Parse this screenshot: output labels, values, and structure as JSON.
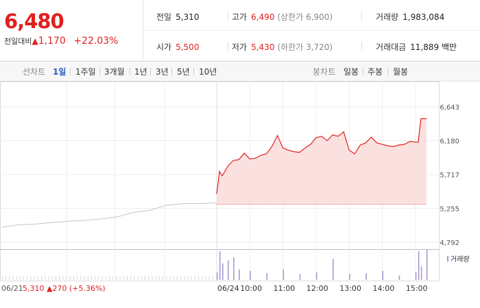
{
  "quote": {
    "price": "6,480",
    "change_label": "전일대비",
    "change_arrow": "▲",
    "change": "1,170",
    "change_pct": "+22.03%"
  },
  "info": {
    "prev_close_label": "전일",
    "prev_close": "5,310",
    "high_label": "고가",
    "high": "6,490",
    "upper_limit": "(상한가 6,900)",
    "volume_label": "거래량",
    "volume": "1,983,084",
    "open_label": "시가",
    "open": "5,500",
    "low_label": "저가",
    "low": "5,430",
    "lower_limit": "(하한가 3,720)",
    "amount_label": "거래대금",
    "amount": "11,889 백만"
  },
  "tabs": {
    "line_label": "선차트",
    "line": [
      "1일",
      "1주일",
      "3개월",
      "1년",
      "3년",
      "5년",
      "10년"
    ],
    "active": "1일",
    "candle_label": "봉차트",
    "candle": [
      "일봉",
      "주봉",
      "월봉"
    ]
  },
  "footer": {
    "prev_date": "06/21",
    "prev_close": "5,310",
    "arrow": "▲",
    "prev_change": "270",
    "prev_pct": "(+5.36%)"
  },
  "colors": {
    "up": "#e0201f",
    "prev_line": "#c4c4c4",
    "fill": "#fbe0e0",
    "volume": "#a592cf"
  },
  "chart_data": {
    "type": "line",
    "y_ticks": [
      "6,643",
      "6,180",
      "5,717",
      "5,255",
      "4,792"
    ],
    "ylim": [
      4792,
      6643
    ],
    "x_ticks": [
      "06/24",
      "10:00",
      "11:00",
      "12:00",
      "13:00",
      "14:00",
      "15:00"
    ],
    "reference_price": 5310,
    "legend": "거래량",
    "series": [
      {
        "name": "",
        "x": [
          "06/21 09:00",
          "06/21 09:30",
          "06/21 10:00",
          "06/21 10:30",
          "06/21 11:00",
          "06/21 11:30",
          "06/21 12:00",
          "06/21 12:30",
          "06/21 13:00",
          "06/21 13:30",
          "06/21 14:00",
          "06/21 14:30",
          "06/21 15:00",
          "06/21 15:20"
        ],
        "values": [
          5000,
          5030,
          5040,
          5060,
          5080,
          5090,
          5110,
          5140,
          5200,
          5230,
          5300,
          5320,
          5320,
          5330
        ]
      },
      {
        "name": "",
        "x": [
          "09:00",
          "09:05",
          "09:10",
          "09:20",
          "09:30",
          "09:40",
          "09:50",
          "10:00",
          "10:10",
          "10:20",
          "10:30",
          "10:40",
          "10:50",
          "11:00",
          "11:10",
          "11:20",
          "11:30",
          "11:40",
          "11:50",
          "12:00",
          "12:10",
          "12:20",
          "12:30",
          "12:40",
          "12:50",
          "13:00",
          "13:10",
          "13:20",
          "13:30",
          "13:40",
          "13:50",
          "14:00",
          "14:10",
          "14:20",
          "14:30",
          "14:40",
          "14:50",
          "15:00",
          "15:05",
          "15:10",
          "15:20"
        ],
        "values": [
          5450,
          5760,
          5700,
          5830,
          5910,
          5920,
          6010,
          5930,
          5940,
          5980,
          6000,
          6100,
          6250,
          6080,
          6050,
          6030,
          6020,
          6080,
          6130,
          6220,
          6240,
          6180,
          6260,
          6240,
          6300,
          6050,
          6000,
          6120,
          6150,
          6230,
          6150,
          6130,
          6110,
          6100,
          6120,
          6130,
          6170,
          6160,
          6160,
          6480,
          6480
        ]
      }
    ],
    "volume": {
      "x": [
        "09:00",
        "09:05",
        "09:10",
        "09:20",
        "09:30",
        "09:40",
        "10:00",
        "10:30",
        "11:00",
        "11:30",
        "12:00",
        "12:30",
        "13:00",
        "13:30",
        "14:00",
        "14:30",
        "15:00",
        "15:05",
        "15:10",
        "15:20"
      ],
      "values": [
        10,
        38,
        22,
        26,
        30,
        14,
        12,
        9,
        14,
        8,
        10,
        28,
        8,
        9,
        12,
        6,
        10,
        38,
        18,
        40
      ]
    }
  }
}
